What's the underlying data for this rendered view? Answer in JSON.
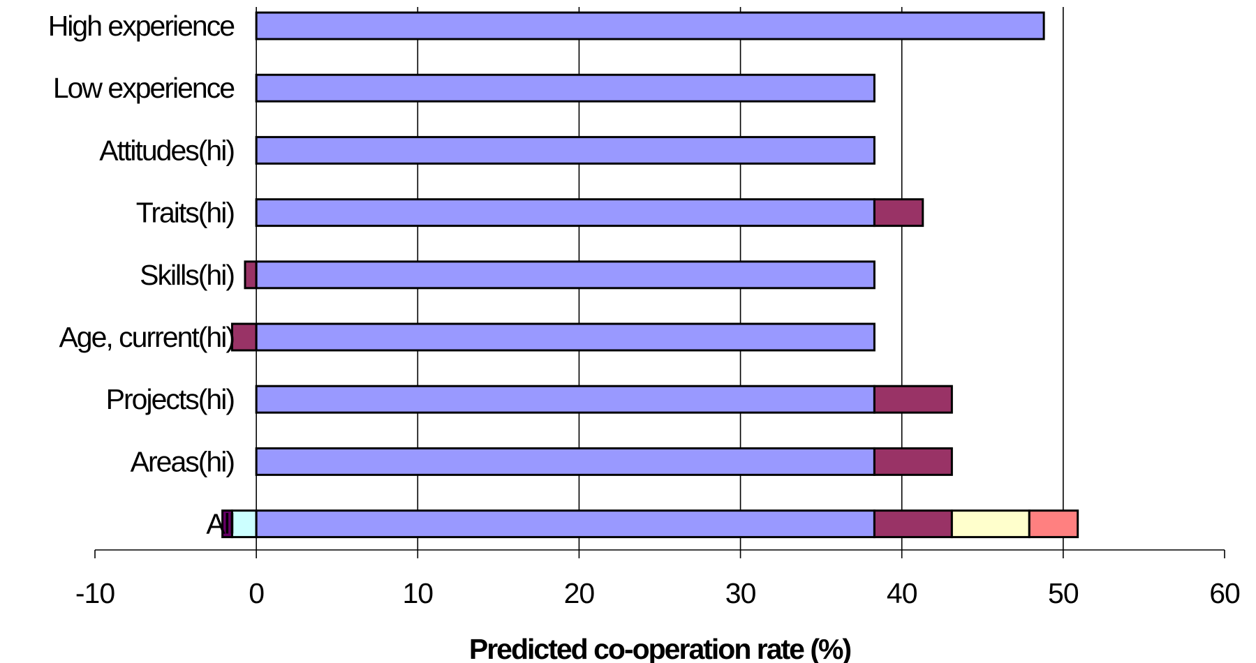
{
  "chart_data": {
    "type": "bar",
    "orientation": "horizontal",
    "stacked": true,
    "title": "",
    "xlabel": "Predicted co-operation rate (%)",
    "ylabel": "",
    "xlim": [
      -10,
      60
    ],
    "xticks": [
      -10,
      0,
      10,
      20,
      30,
      40,
      50,
      60
    ],
    "grid": true,
    "legend": "none",
    "categories": [
      "High experience",
      "Low experience",
      "Attitudes(hi)",
      "Traits(hi)",
      "Skills(hi)",
      "Age, current(hi)",
      "Projects(hi)",
      "Areas(hi)",
      "All"
    ],
    "segments": [
      [
        {
          "from": 0,
          "to": 48.8,
          "color": "#9999ff"
        }
      ],
      [
        {
          "from": 0,
          "to": 38.3,
          "color": "#9999ff"
        }
      ],
      [
        {
          "from": 0,
          "to": 38.3,
          "color": "#9999ff"
        }
      ],
      [
        {
          "from": 0,
          "to": 38.3,
          "color": "#9999ff"
        },
        {
          "from": 38.3,
          "to": 41.3,
          "color": "#993366"
        }
      ],
      [
        {
          "from": -0.7,
          "to": 0,
          "color": "#993366"
        },
        {
          "from": 0,
          "to": 38.3,
          "color": "#9999ff"
        }
      ],
      [
        {
          "from": -1.5,
          "to": 0,
          "color": "#993366"
        },
        {
          "from": 0,
          "to": 38.3,
          "color": "#9999ff"
        }
      ],
      [
        {
          "from": 0,
          "to": 38.3,
          "color": "#9999ff"
        },
        {
          "from": 38.3,
          "to": 43.1,
          "color": "#993366"
        }
      ],
      [
        {
          "from": 0,
          "to": 38.3,
          "color": "#9999ff"
        },
        {
          "from": 38.3,
          "to": 43.1,
          "color": "#993366"
        }
      ],
      [
        {
          "from": -2.1,
          "to": -1.5,
          "color": "#660066"
        },
        {
          "from": -1.5,
          "to": 0,
          "color": "#ccffff"
        },
        {
          "from": 0,
          "to": 38.3,
          "color": "#9999ff"
        },
        {
          "from": 38.3,
          "to": 43.1,
          "color": "#993366"
        },
        {
          "from": 43.1,
          "to": 47.9,
          "color": "#ffffcc"
        },
        {
          "from": 47.9,
          "to": 50.9,
          "color": "#ff8080"
        }
      ]
    ]
  }
}
